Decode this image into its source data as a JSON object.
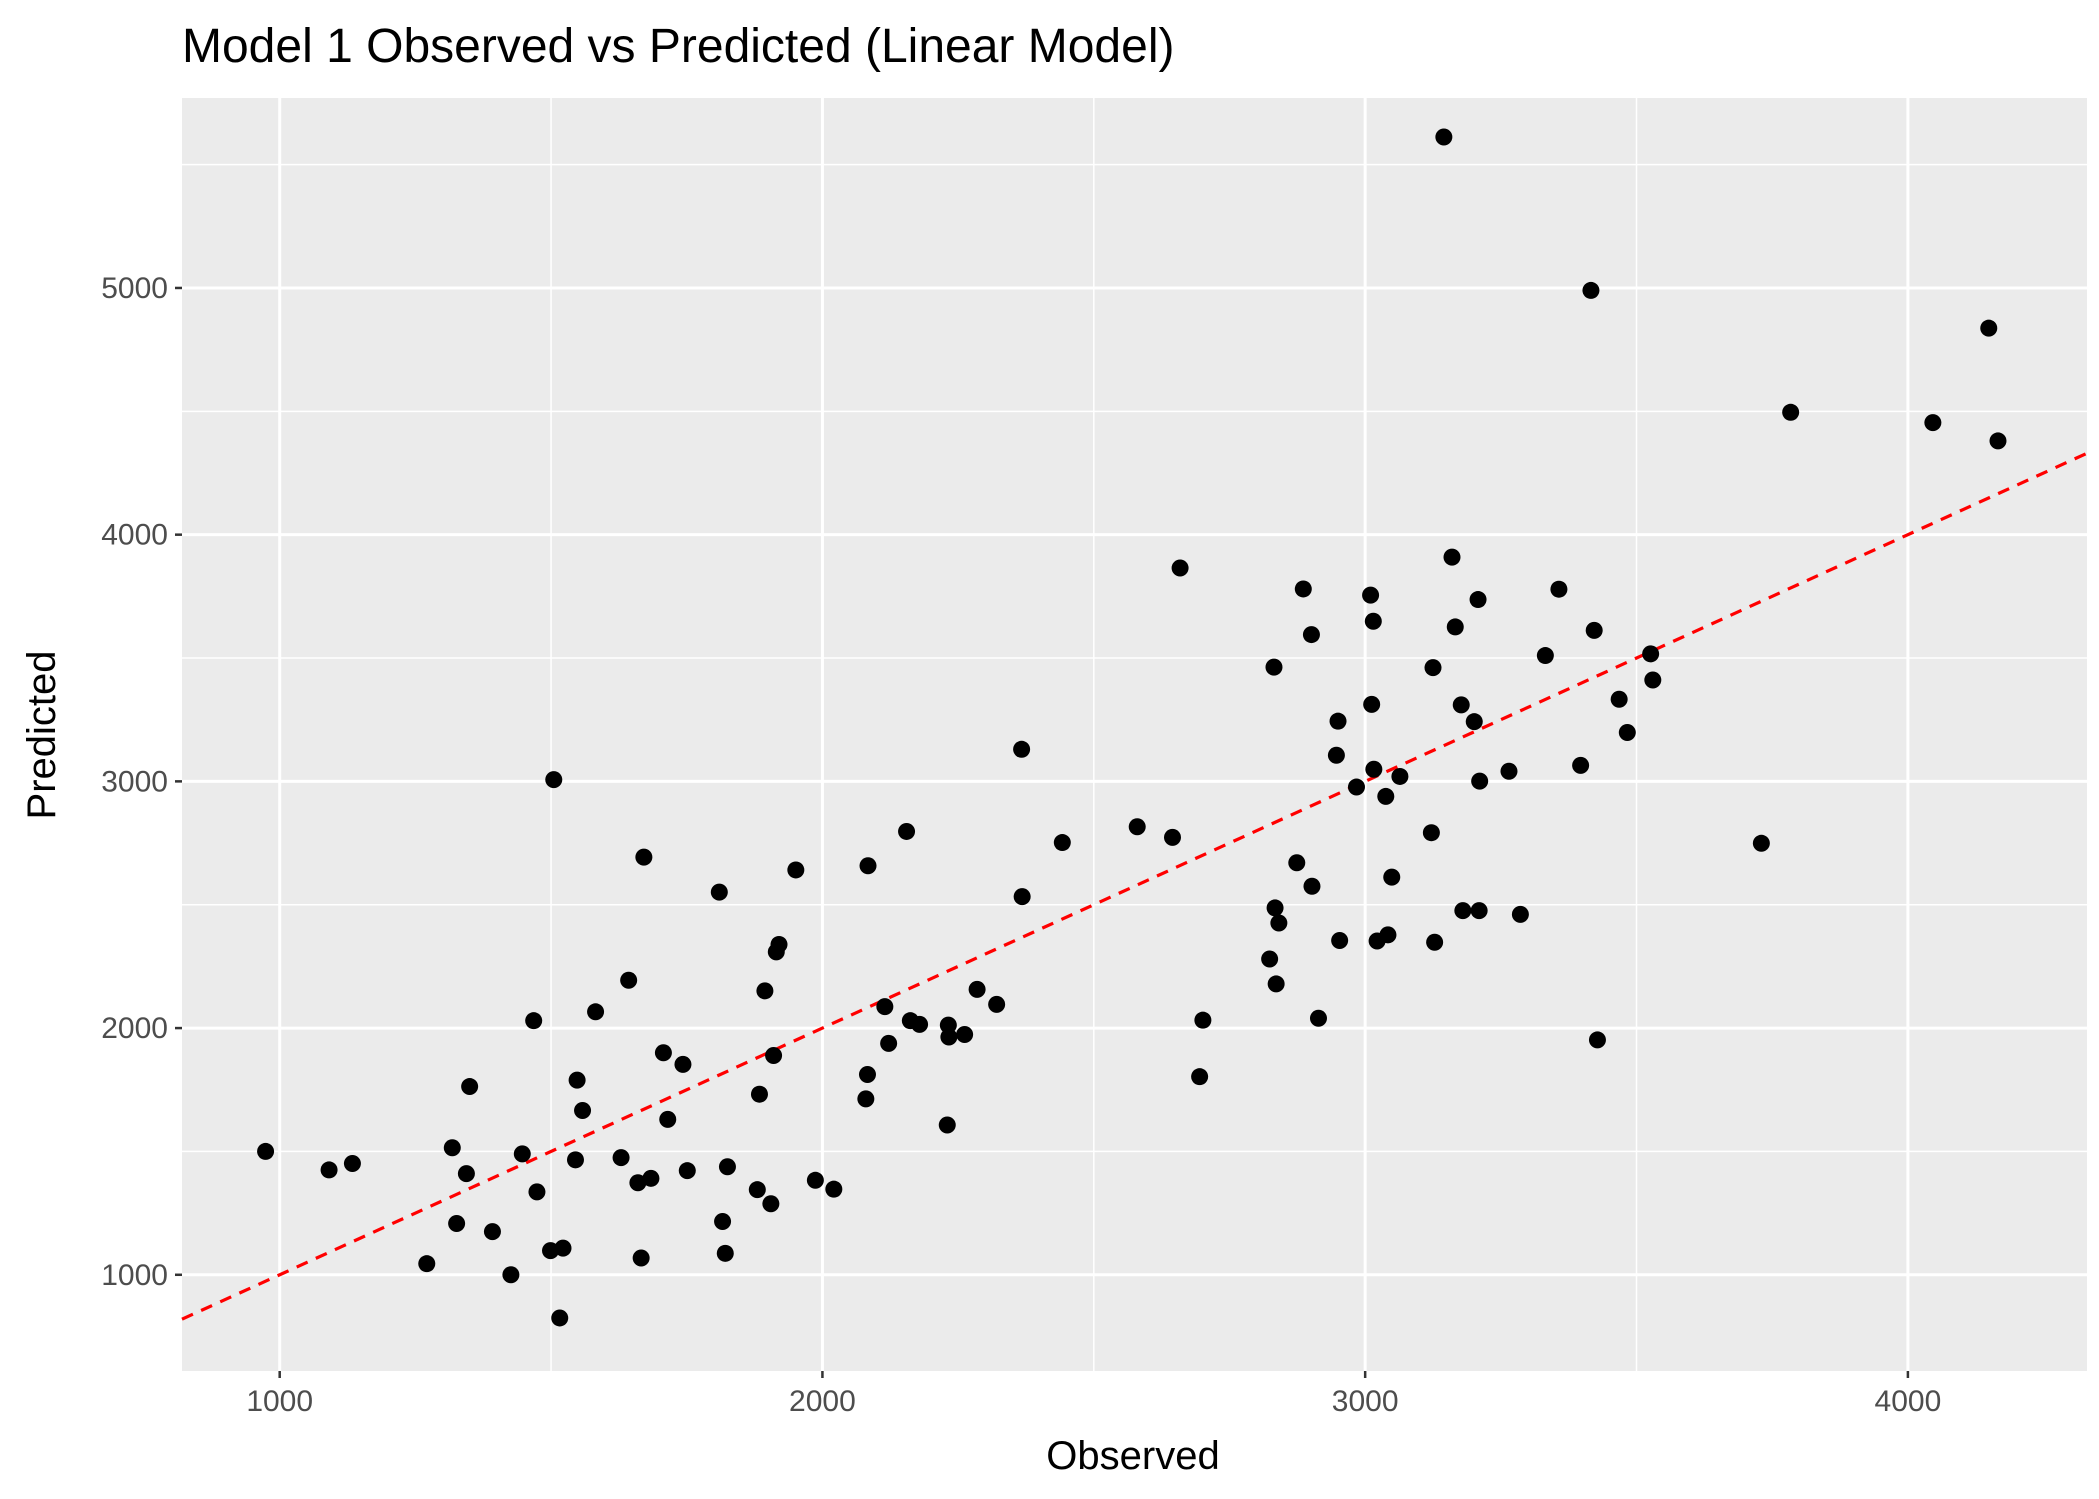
{
  "chart_data": {
    "type": "scatter",
    "title": "Model 1 Observed vs Predicted (Linear Model)",
    "xlabel": "Observed",
    "ylabel": "Predicted",
    "xlim": [
      820,
      4330
    ],
    "ylim": [
      610,
      5770
    ],
    "x_ticks": [
      1000,
      2000,
      3000,
      4000
    ],
    "y_ticks": [
      1000,
      2000,
      3000,
      4000,
      5000
    ],
    "x_tick_labels": [
      "1000",
      "2000",
      "3000",
      "4000"
    ],
    "y_tick_labels": [
      "1000",
      "2000",
      "3000",
      "4000",
      "5000"
    ],
    "grid": true,
    "background": "#ebebeb",
    "point_color": "#000000",
    "reference_line": {
      "slope": 1,
      "intercept": 0,
      "color": "#ff0000",
      "style": "dashed"
    },
    "points": [
      [
        974,
        1500
      ],
      [
        1091,
        1425
      ],
      [
        1134,
        1451
      ],
      [
        1271,
        1045
      ],
      [
        1318,
        1515
      ],
      [
        1326,
        1208
      ],
      [
        1344,
        1410
      ],
      [
        1350,
        1763
      ],
      [
        1392,
        1175
      ],
      [
        1426,
        1000
      ],
      [
        1447,
        1490
      ],
      [
        1468,
        2030
      ],
      [
        1474,
        1336
      ],
      [
        1499,
        1098
      ],
      [
        1505,
        3007
      ],
      [
        1516,
        825
      ],
      [
        1522,
        1108
      ],
      [
        1545,
        1466
      ],
      [
        1548,
        1789
      ],
      [
        1558,
        1666
      ],
      [
        1582,
        2066
      ],
      [
        1629,
        1475
      ],
      [
        1643,
        2194
      ],
      [
        1660,
        1373
      ],
      [
        1666,
        1068
      ],
      [
        1671,
        2693
      ],
      [
        1684,
        1391
      ],
      [
        1707,
        1900
      ],
      [
        1715,
        1630
      ],
      [
        1743,
        1853
      ],
      [
        1751,
        1422
      ],
      [
        1810,
        2551
      ],
      [
        1816,
        1216
      ],
      [
        1821,
        1087
      ],
      [
        1825,
        1438
      ],
      [
        1880,
        1345
      ],
      [
        1884,
        1732
      ],
      [
        1894,
        2151
      ],
      [
        1905,
        1288
      ],
      [
        1910,
        1889
      ],
      [
        1915,
        2309
      ],
      [
        1920,
        2339
      ],
      [
        1951,
        2641
      ],
      [
        1987,
        1383
      ],
      [
        2021,
        1347
      ],
      [
        2080,
        1713
      ],
      [
        2083,
        1812
      ],
      [
        2084,
        2658
      ],
      [
        2115,
        2087
      ],
      [
        2122,
        1938
      ],
      [
        2155,
        2797
      ],
      [
        2162,
        2030
      ],
      [
        2179,
        2015
      ],
      [
        2230,
        1607
      ],
      [
        2232,
        2012
      ],
      [
        2233,
        1964
      ],
      [
        2262,
        1974
      ],
      [
        2285,
        2157
      ],
      [
        2321,
        2096
      ],
      [
        2367,
        3130
      ],
      [
        2368,
        2533
      ],
      [
        2442,
        2752
      ],
      [
        2580,
        2816
      ],
      [
        2645,
        2773
      ],
      [
        2659,
        3865
      ],
      [
        2695,
        1803
      ],
      [
        2701,
        2032
      ],
      [
        2824,
        2280
      ],
      [
        2832,
        3463
      ],
      [
        2834,
        2487
      ],
      [
        2836,
        2179
      ],
      [
        2841,
        2426
      ],
      [
        2874,
        2670
      ],
      [
        2886,
        3780
      ],
      [
        2901,
        3595
      ],
      [
        2902,
        2575
      ],
      [
        2914,
        2040
      ],
      [
        2947,
        3106
      ],
      [
        2950,
        3244
      ],
      [
        2953,
        2355
      ],
      [
        2984,
        2977
      ],
      [
        3010,
        3755
      ],
      [
        3012,
        3312
      ],
      [
        3015,
        3649
      ],
      [
        3016,
        3049
      ],
      [
        3022,
        2353
      ],
      [
        3038,
        2939
      ],
      [
        3042,
        2378
      ],
      [
        3049,
        2612
      ],
      [
        3064,
        3020
      ],
      [
        3122,
        2792
      ],
      [
        3125,
        3461
      ],
      [
        3128,
        2348
      ],
      [
        3145,
        5612
      ],
      [
        3160,
        3909
      ],
      [
        3166,
        3626
      ],
      [
        3177,
        3310
      ],
      [
        3180,
        2476
      ],
      [
        3201,
        3242
      ],
      [
        3208,
        3737
      ],
      [
        3210,
        2476
      ],
      [
        3211,
        3001
      ],
      [
        3265,
        3041
      ],
      [
        3286,
        2461
      ],
      [
        3332,
        3510
      ],
      [
        3357,
        3779
      ],
      [
        3397,
        3065
      ],
      [
        3416,
        4990
      ],
      [
        3422,
        3612
      ],
      [
        3428,
        1952
      ],
      [
        3468,
        3333
      ],
      [
        3483,
        3198
      ],
      [
        3526,
        3517
      ],
      [
        3530,
        3411
      ],
      [
        3730,
        2749
      ],
      [
        3784,
        4496
      ],
      [
        4046,
        4454
      ],
      [
        4149,
        4837
      ],
      [
        4166,
        4380
      ]
    ]
  }
}
